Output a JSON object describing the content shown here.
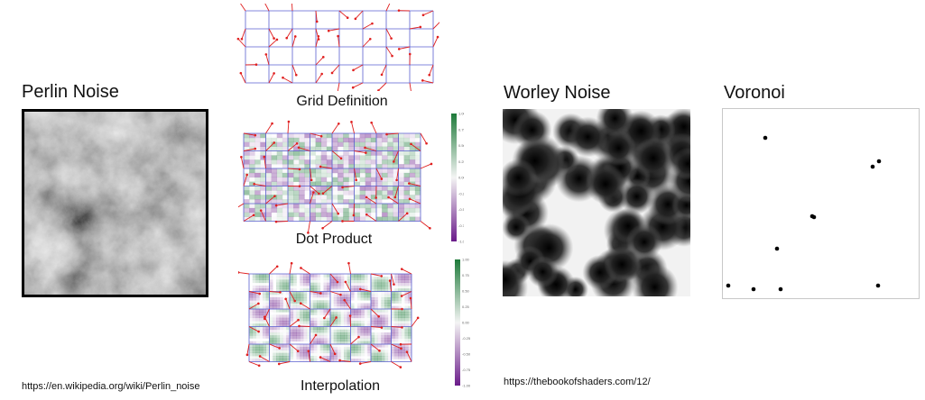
{
  "perlin": {
    "title": "Perlin Noise",
    "source_url": "https://en.wikipedia.org/wiki/Perlin_noise"
  },
  "steps": [
    {
      "caption": "Grid Definition"
    },
    {
      "caption": "Dot Product",
      "colorbar_ticks": [
        "1.00",
        "0.75",
        "0.50",
        "0.25",
        "0.00",
        "-0.25",
        "-0.50",
        "-0.75",
        "-1.00"
      ]
    },
    {
      "caption": "Interpolation",
      "colorbar_ticks": [
        "1.00",
        "0.75",
        "0.50",
        "0.25",
        "0.00",
        "-0.25",
        "-0.50",
        "-0.75",
        "-1.00"
      ]
    }
  ],
  "worley": {
    "title": "Worley Noise",
    "source_url": "https://thebookofshaders.com/12/"
  },
  "voronoi": {
    "title": "Voronoi"
  },
  "colors": {
    "grid_line": "#5a5fd0",
    "gradient_arrow": "#e02020",
    "positive": "#1e7a3a",
    "negative": "#6a1b8a",
    "voronoi_point": "#000000"
  }
}
